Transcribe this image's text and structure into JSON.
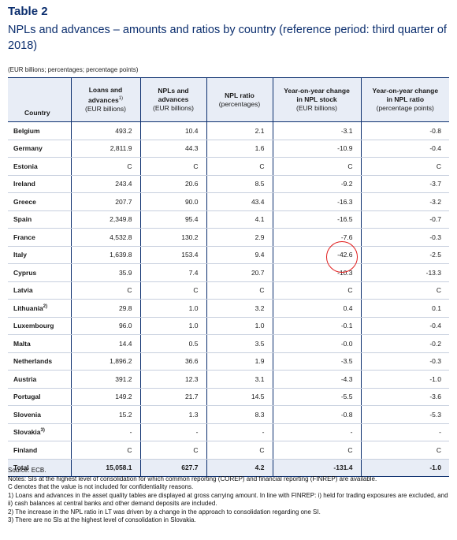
{
  "title": "Table 2",
  "subtitle": "NPLs and advances – amounts and ratios by country (reference period: third quarter of 2018)",
  "units": "(EUR billions; percentages; percentage points)",
  "headers": {
    "country": "Country",
    "loans_line1": "Loans and",
    "loans_line2": "advances",
    "loans_sup": "1)",
    "loans_line3": "(EUR billions)",
    "npls_line1": "NPLs and",
    "npls_line2": "advances",
    "npls_line3": "(EUR billions)",
    "ratio_line1": "NPL ratio",
    "ratio_line2": "(percentages)",
    "yoy_stock_line1": "Year-on-year change",
    "yoy_stock_line2": "in NPL stock",
    "yoy_stock_line3": "(EUR billions)",
    "yoy_ratio_line1": "Year-on-year change",
    "yoy_ratio_line2": "in NPL ratio",
    "yoy_ratio_line3": "(percentage points)"
  },
  "rows": [
    {
      "country": "Belgium",
      "sup": "",
      "loans": "493.2",
      "npls": "10.4",
      "ratio": "2.1",
      "yoy_stock": "-3.1",
      "yoy_ratio": "-0.8"
    },
    {
      "country": "Germany",
      "sup": "",
      "loans": "2,811.9",
      "npls": "44.3",
      "ratio": "1.6",
      "yoy_stock": "-10.9",
      "yoy_ratio": "-0.4"
    },
    {
      "country": "Estonia",
      "sup": "",
      "loans": "C",
      "npls": "C",
      "ratio": "C",
      "yoy_stock": "C",
      "yoy_ratio": "C"
    },
    {
      "country": "Ireland",
      "sup": "",
      "loans": "243.4",
      "npls": "20.6",
      "ratio": "8.5",
      "yoy_stock": "-9.2",
      "yoy_ratio": "-3.7"
    },
    {
      "country": "Greece",
      "sup": "",
      "loans": "207.7",
      "npls": "90.0",
      "ratio": "43.4",
      "yoy_stock": "-16.3",
      "yoy_ratio": "-3.2"
    },
    {
      "country": "Spain",
      "sup": "",
      "loans": "2,349.8",
      "npls": "95.4",
      "ratio": "4.1",
      "yoy_stock": "-16.5",
      "yoy_ratio": "-0.7"
    },
    {
      "country": "France",
      "sup": "",
      "loans": "4,532.8",
      "npls": "130.2",
      "ratio": "2.9",
      "yoy_stock": "-7.6",
      "yoy_ratio": "-0.3"
    },
    {
      "country": "Italy",
      "sup": "",
      "loans": "1,639.8",
      "npls": "153.4",
      "ratio": "9.4",
      "yoy_stock": "-42.6",
      "yoy_ratio": "-2.5"
    },
    {
      "country": "Cyprus",
      "sup": "",
      "loans": "35.9",
      "npls": "7.4",
      "ratio": "20.7",
      "yoy_stock": "-10.3",
      "yoy_ratio": "-13.3"
    },
    {
      "country": "Latvia",
      "sup": "",
      "loans": "C",
      "npls": "C",
      "ratio": "C",
      "yoy_stock": "C",
      "yoy_ratio": "C"
    },
    {
      "country": "Lithuania",
      "sup": "2)",
      "loans": "29.8",
      "npls": "1.0",
      "ratio": "3.2",
      "yoy_stock": "0.4",
      "yoy_ratio": "0.1"
    },
    {
      "country": "Luxembourg",
      "sup": "",
      "loans": "96.0",
      "npls": "1.0",
      "ratio": "1.0",
      "yoy_stock": "-0.1",
      "yoy_ratio": "-0.4"
    },
    {
      "country": "Malta",
      "sup": "",
      "loans": "14.4",
      "npls": "0.5",
      "ratio": "3.5",
      "yoy_stock": "-0.0",
      "yoy_ratio": "-0.2"
    },
    {
      "country": "Netherlands",
      "sup": "",
      "loans": "1,896.2",
      "npls": "36.6",
      "ratio": "1.9",
      "yoy_stock": "-3.5",
      "yoy_ratio": "-0.3"
    },
    {
      "country": "Austria",
      "sup": "",
      "loans": "391.2",
      "npls": "12.3",
      "ratio": "3.1",
      "yoy_stock": "-4.3",
      "yoy_ratio": "-1.0"
    },
    {
      "country": "Portugal",
      "sup": "",
      "loans": "149.2",
      "npls": "21.7",
      "ratio": "14.5",
      "yoy_stock": "-5.5",
      "yoy_ratio": "-3.6"
    },
    {
      "country": "Slovenia",
      "sup": "",
      "loans": "15.2",
      "npls": "1.3",
      "ratio": "8.3",
      "yoy_stock": "-0.8",
      "yoy_ratio": "-5.3"
    },
    {
      "country": "Slovakia",
      "sup": "3)",
      "loans": "-",
      "npls": "-",
      "ratio": "-",
      "yoy_stock": "-",
      "yoy_ratio": "-"
    },
    {
      "country": "Finland",
      "sup": "",
      "loans": "C",
      "npls": "C",
      "ratio": "C",
      "yoy_stock": "C",
      "yoy_ratio": "C"
    }
  ],
  "total": {
    "country": "Total",
    "loans": "15,058.1",
    "npls": "627.7",
    "ratio": "4.2",
    "yoy_stock": "-131.4",
    "yoy_ratio": "-1.0"
  },
  "highlight_color": "#e01b1b",
  "notes": [
    "Source: ECB.",
    "Notes: SIs at the highest level of consolidation for which common reporting (COREP) and financial reporting (FINREP) are available.",
    "C denotes that the value is not included for confidentiality reasons.",
    "1) Loans and advances in the asset quality tables are displayed at gross carrying amount. In line with FINREP: i) held for trading exposures are excluded, and ii) cash balances at central banks and other demand deposits are included.",
    "2) The increase in the NPL ratio in LT was driven by a change in the approach to consolidation regarding one SI.",
    "3) There are no SIs at the highest level of consolidation in Slovakia."
  ]
}
